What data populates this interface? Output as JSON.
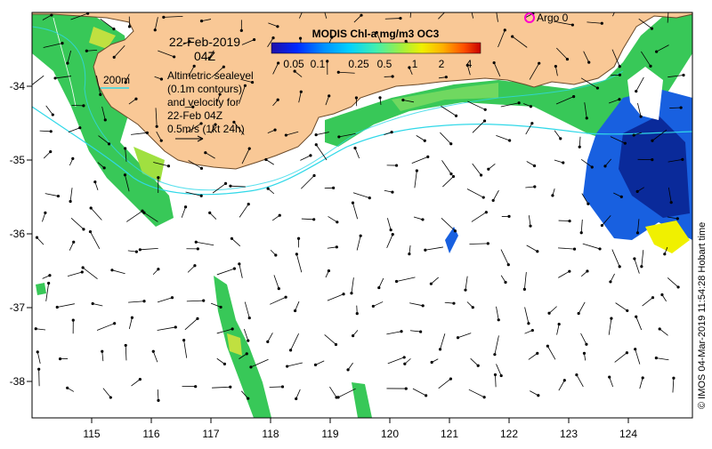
{
  "map": {
    "date_line1": "22-Feb-2019",
    "date_line2": "04Z",
    "colorbar_title": "MODIS Chl-a mg/m3 OC3",
    "colorbar_ticks": [
      "0.05",
      "0.1",
      "0.25",
      "0.5",
      "1",
      "2",
      "4"
    ],
    "colorbar_colors": [
      "#1e10a8",
      "#0028ff",
      "#0090ff",
      "#00d0ff",
      "#40f0b0",
      "#a0f040",
      "#f0f000",
      "#ffb000",
      "#ff5000",
      "#c80000"
    ],
    "depth_contour_label": "200m",
    "legend_text": [
      "Altimetric sealevel",
      "(0.1m contours)",
      "and velocity for",
      "22-Feb 04Z",
      "0.5m/s (1kt 24h)"
    ],
    "argo_label": "Argo 0",
    "credit": "© IMOS 04-Mar-2019 11:54:28 Hobart time",
    "x_ticks": [
      "115",
      "116",
      "117",
      "118",
      "119",
      "120",
      "121",
      "122",
      "123",
      "124"
    ],
    "y_ticks": [
      "-34",
      "-35",
      "-36",
      "-37",
      "-38"
    ],
    "colors": {
      "land": "#f9c896",
      "land_edge": "#6a4a2a",
      "ocean": "#ffffff",
      "contour": "#30d8e8",
      "chl_green": "#38c858",
      "chl_lightgreen": "#80e060",
      "chl_blue": "#1860e0",
      "chl_darkblue": "#0a2a9a",
      "chl_yellow": "#f0f000",
      "argo": "#ff00cc"
    }
  }
}
